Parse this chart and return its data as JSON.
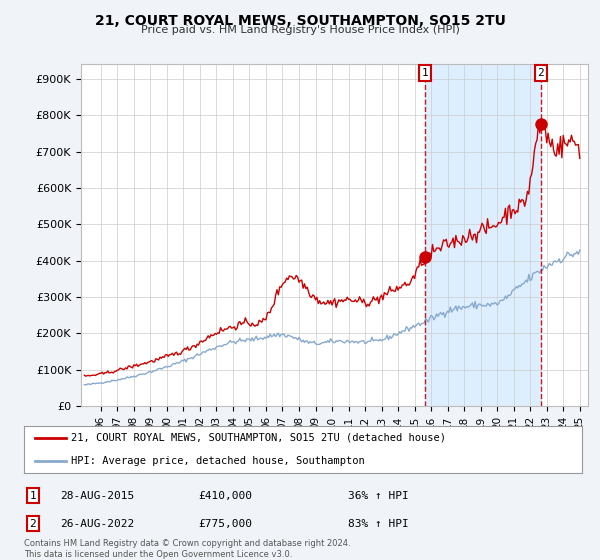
{
  "title": "21, COURT ROYAL MEWS, SOUTHAMPTON, SO15 2TU",
  "subtitle": "Price paid vs. HM Land Registry's House Price Index (HPI)",
  "hpi_label": "HPI: Average price, detached house, Southampton",
  "property_label": "21, COURT ROYAL MEWS, SOUTHAMPTON, SO15 2TU (detached house)",
  "footnote": "Contains HM Land Registry data © Crown copyright and database right 2024.\nThis data is licensed under the Open Government Licence v3.0.",
  "property_color": "#cc0000",
  "hpi_color": "#88aacc",
  "shade_color": "#ddeeff",
  "background_color": "#f0f4f8",
  "plot_bg_color": "#ffffff",
  "transaction1_date": "28-AUG-2015",
  "transaction1_price": "£410,000",
  "transaction1_note": "36% ↑ HPI",
  "transaction1_x": 2015.65,
  "transaction1_y": 410000,
  "transaction2_date": "26-AUG-2022",
  "transaction2_price": "£775,000",
  "transaction2_note": "83% ↑ HPI",
  "transaction2_x": 2022.65,
  "transaction2_y": 775000,
  "ylim": [
    0,
    940000
  ],
  "xlim": [
    1994.8,
    2025.5
  ],
  "yticks": [
    0,
    100000,
    200000,
    300000,
    400000,
    500000,
    600000,
    700000,
    800000,
    900000
  ],
  "ytick_labels": [
    "£0",
    "£100K",
    "£200K",
    "£300K",
    "£400K",
    "£500K",
    "£600K",
    "£700K",
    "£800K",
    "£900K"
  ],
  "xticks": [
    1996,
    1997,
    1998,
    1999,
    2000,
    2001,
    2002,
    2003,
    2004,
    2005,
    2006,
    2007,
    2008,
    2009,
    2010,
    2011,
    2012,
    2013,
    2014,
    2015,
    2016,
    2017,
    2018,
    2019,
    2020,
    2021,
    2022,
    2023,
    2024,
    2025
  ],
  "xtick_labels": [
    "96",
    "97",
    "98",
    "99",
    "00",
    "01",
    "02",
    "03",
    "04",
    "05",
    "06",
    "07",
    "08",
    "09",
    "10",
    "11",
    "12",
    "13",
    "14",
    "15",
    "16",
    "17",
    "18",
    "19",
    "20",
    "21",
    "22",
    "23",
    "24",
    "25"
  ]
}
